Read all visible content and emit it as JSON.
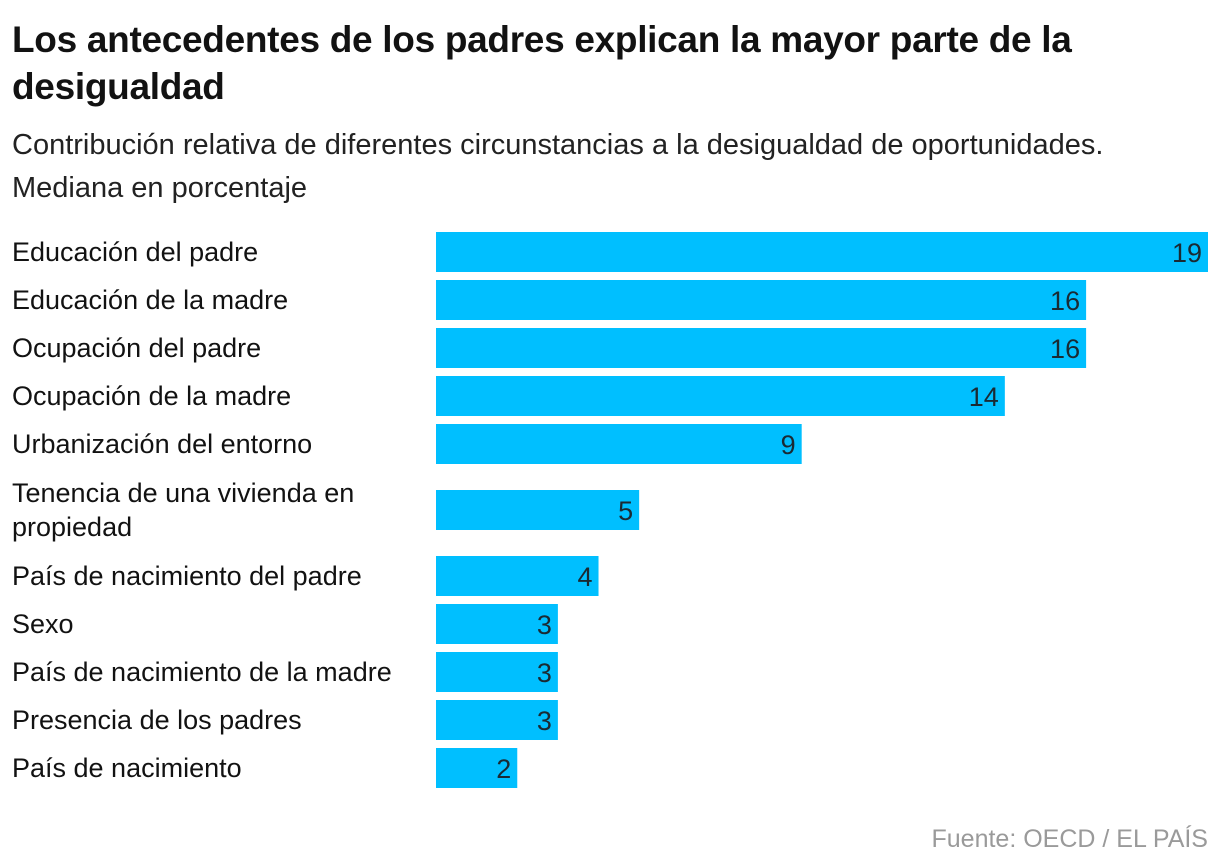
{
  "header": {
    "title": "Los antecedentes de los padres explican la mayor parte de la desigualdad",
    "subtitle": "Contribución relativa de diferentes circunstancias a la desigualdad de oportunidades. Mediana en porcentaje"
  },
  "footer": {
    "source": "Fuente: OECD / EL PAÍS"
  },
  "colors": {
    "bar": "#00bfff",
    "label": "#121212",
    "value": "#1a2a33"
  },
  "chart_data": {
    "type": "bar",
    "orientation": "horizontal",
    "title": "Los antecedentes de los padres explican la mayor parte de la desigualdad",
    "subtitle": "Contribución relativa de diferentes circunstancias a la desigualdad de oportunidades. Mediana en porcentaje",
    "categories": [
      [
        "Educación del padre"
      ],
      [
        "Educación de la madre"
      ],
      [
        "Ocupación del padre"
      ],
      [
        "Ocupación de la madre"
      ],
      [
        "Urbanización del entorno"
      ],
      [
        "Tenencia de una vivienda en",
        "propiedad"
      ],
      [
        "País de nacimiento del padre"
      ],
      [
        "Sexo"
      ],
      [
        "País de nacimiento de la madre"
      ],
      [
        "Presencia de los padres"
      ],
      [
        "País de nacimiento"
      ]
    ],
    "values": [
      19,
      16,
      16,
      14,
      9,
      5,
      4,
      3,
      3,
      3,
      2
    ],
    "xlim": [
      0,
      19
    ],
    "grid": false,
    "legend": "none"
  }
}
